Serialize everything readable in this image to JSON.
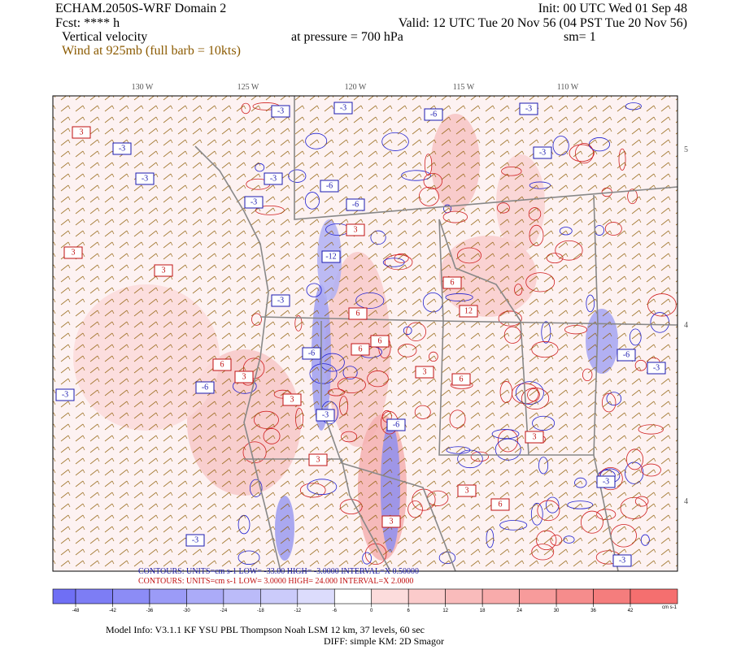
{
  "header": {
    "model": "ECHAM.2050S-WRF Domain 2",
    "fcst": "Fcst: **** h",
    "field": "Vertical velocity",
    "wind": "Wind at 925mb (full barb = 10kts)",
    "init": "Init: 00 UTC Wed 01 Sep 48",
    "valid": "Valid: 12 UTC Tue 20 Nov 56 (04 PST Tue 20 Nov 56)",
    "pressure": "at pressure =  700 hPa",
    "sm": "sm= 1"
  },
  "map": {
    "lon_labels": [
      "130 W",
      "125 W",
      "120 W",
      "115 W",
      "110 W"
    ],
    "lat_labels": [
      "5",
      "4",
      "4"
    ],
    "contour_labels": [
      "-3",
      "-3",
      "-3",
      "-3",
      "-6",
      "-3",
      "-3",
      "3",
      "-3",
      "-3",
      "-6",
      "-6",
      "-12",
      "3",
      "3",
      "3",
      "-3",
      "6",
      "12",
      "6",
      "-6",
      "3",
      "6",
      "3",
      "6",
      "6",
      "-3",
      "-3",
      "-6",
      "6",
      "3",
      "3",
      "-3",
      "3",
      "6",
      "-6",
      "-3",
      "3",
      "-3",
      "-3",
      "3",
      "-6"
    ]
  },
  "contours": {
    "negative": "CONTOURS:  UNITS=cm s-1  LOW= -33.00    HIGH= -3.0000    INTERVAL=X 0.50000",
    "positive": "CONTOURS:  UNITS=cm s-1  LOW=  3.0000    HIGH=  24.000    INTERVAL=X  2.0000"
  },
  "colorbar": {
    "ticks": [
      -48,
      -42,
      -36,
      -30,
      -24,
      -18,
      -12,
      -6,
      0,
      6,
      12,
      18,
      24,
      30,
      36,
      42
    ],
    "units": "cm s-1",
    "colors": [
      "#6f6ff5",
      "#7d7df5",
      "#8c8cf6",
      "#9b9bf7",
      "#ababf8",
      "#bbbbf9",
      "#cbcbfa",
      "#dcdcfc",
      "#ffffff",
      "#fcdcdc",
      "#fbcbcb",
      "#f9bbbb",
      "#f8abab",
      "#f79b9b",
      "#f68c8c",
      "#f57d7d",
      "#f56f6f"
    ]
  },
  "footer": {
    "model_info": "Model Info: V3.1.1    KF      YSU PBL   Thompson     Noah LSM  12 km,    37 levels,    60 sec",
    "diff": "DIFF: simple KM: 2D Smagor"
  }
}
